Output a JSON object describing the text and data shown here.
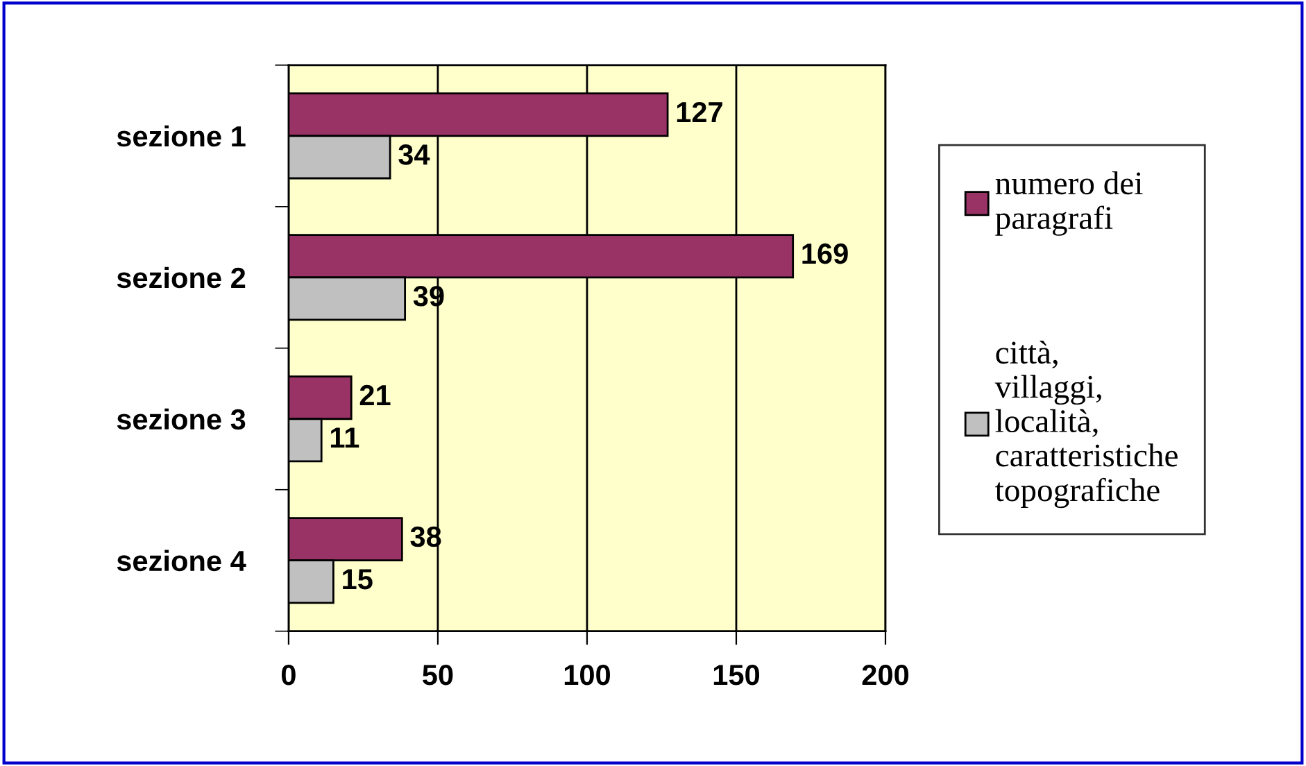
{
  "chart_data": {
    "type": "bar",
    "orientation": "horizontal",
    "categories": [
      "sezione 1",
      "sezione 2",
      "sezione 3",
      "sezione 4"
    ],
    "series": [
      {
        "name": "numero dei paragrafi",
        "color": "#993366",
        "values": [
          127,
          169,
          21,
          38
        ]
      },
      {
        "name": "città, villaggi, località, caratteristiche topografiche",
        "color": "#c0c0c0",
        "values": [
          34,
          39,
          11,
          15
        ]
      }
    ],
    "xlim": [
      0,
      200
    ],
    "xticks": [
      0,
      50,
      100,
      150,
      200
    ],
    "grid": "x",
    "legend": "right",
    "data_labels": true
  }
}
